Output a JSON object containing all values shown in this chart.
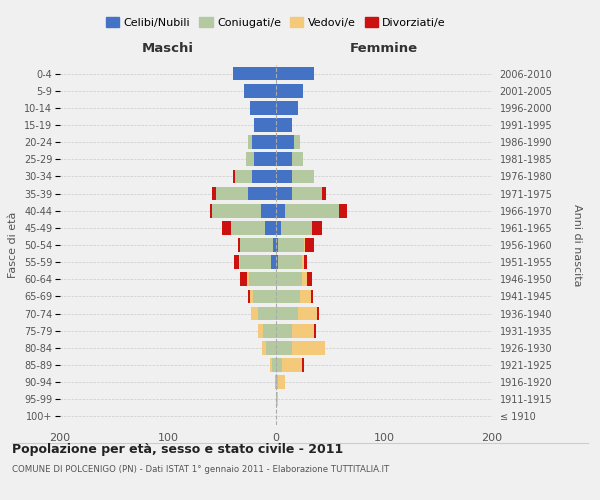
{
  "age_groups": [
    "100+",
    "95-99",
    "90-94",
    "85-89",
    "80-84",
    "75-79",
    "70-74",
    "65-69",
    "60-64",
    "55-59",
    "50-54",
    "45-49",
    "40-44",
    "35-39",
    "30-34",
    "25-29",
    "20-24",
    "15-19",
    "10-14",
    "5-9",
    "0-4"
  ],
  "birth_years": [
    "≤ 1910",
    "1911-1915",
    "1916-1920",
    "1921-1925",
    "1926-1930",
    "1931-1935",
    "1936-1940",
    "1941-1945",
    "1946-1950",
    "1951-1955",
    "1956-1960",
    "1961-1965",
    "1966-1970",
    "1971-1975",
    "1976-1980",
    "1981-1985",
    "1986-1990",
    "1991-1995",
    "1996-2000",
    "2001-2005",
    "2006-2010"
  ],
  "maschi": {
    "celibe": [
      0,
      0,
      0,
      0,
      0,
      0,
      0,
      0,
      0,
      5,
      3,
      10,
      14,
      26,
      22,
      20,
      22,
      20,
      24,
      30,
      40
    ],
    "coniugato": [
      0,
      0,
      1,
      4,
      9,
      12,
      17,
      21,
      25,
      28,
      30,
      32,
      45,
      30,
      16,
      8,
      4,
      0,
      0,
      0,
      0
    ],
    "vedovo": [
      0,
      0,
      0,
      2,
      4,
      5,
      6,
      3,
      2,
      1,
      0,
      0,
      0,
      0,
      0,
      0,
      0,
      0,
      0,
      0,
      0
    ],
    "divorziato": [
      0,
      0,
      0,
      0,
      0,
      0,
      0,
      2,
      6,
      5,
      2,
      8,
      2,
      3,
      2,
      0,
      0,
      0,
      0,
      0,
      0
    ]
  },
  "femmine": {
    "nubile": [
      0,
      0,
      0,
      0,
      0,
      0,
      0,
      0,
      0,
      2,
      2,
      5,
      8,
      15,
      15,
      15,
      17,
      15,
      20,
      25,
      35
    ],
    "coniugata": [
      0,
      1,
      2,
      6,
      15,
      15,
      20,
      22,
      24,
      22,
      24,
      28,
      50,
      28,
      20,
      10,
      5,
      0,
      0,
      0,
      0
    ],
    "vedova": [
      0,
      1,
      6,
      18,
      30,
      20,
      18,
      10,
      5,
      2,
      1,
      0,
      0,
      0,
      0,
      0,
      0,
      0,
      0,
      0,
      0
    ],
    "divorziata": [
      0,
      0,
      0,
      2,
      0,
      2,
      2,
      2,
      4,
      3,
      8,
      10,
      8,
      3,
      0,
      0,
      0,
      0,
      0,
      0,
      0
    ]
  },
  "colors": {
    "celibe": "#4472C4",
    "coniugato": "#b5c9a0",
    "vedovo": "#f5c97a",
    "divorziato": "#cc1111"
  },
  "xlim": 200,
  "title": "Popolazione per età, sesso e stato civile - 2011",
  "subtitle": "COMUNE DI POLCENIGO (PN) - Dati ISTAT 1° gennaio 2011 - Elaborazione TUTTITALIA.IT",
  "ylabel_left": "Fasce di età",
  "ylabel_right": "Anni di nascita",
  "label_maschi": "Maschi",
  "label_femmine": "Femmine",
  "bg_color": "#f0f0f0",
  "legend_labels": [
    "Celibi/Nubili",
    "Coniugati/e",
    "Vedovi/e",
    "Divorziati/e"
  ]
}
